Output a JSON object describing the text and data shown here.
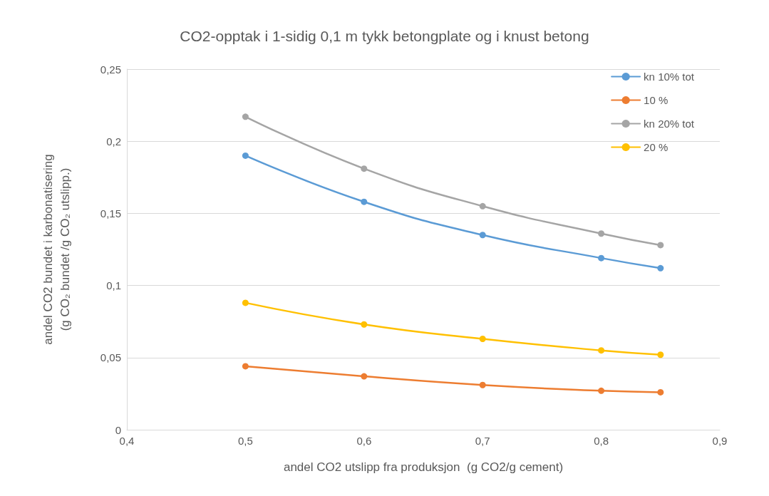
{
  "chart_data": {
    "type": "line",
    "title": "CO2-opptak i 1-sidig 0,1 m tykk betongplate og i knust betong",
    "xlabel": "andel CO2 utslipp fra produksjon  (g CO2/g cement)",
    "ylabel": "andel CO2 bundet i karbonatisering\n(g CO₂ bundet /g CO₂ utslipp.)",
    "x": [
      0.5,
      0.6,
      0.7,
      0.8,
      0.85
    ],
    "series": [
      {
        "name": "kn 10% tot",
        "color": "#5b9bd5",
        "values": [
          0.19,
          0.158,
          0.135,
          0.119,
          0.112
        ]
      },
      {
        "name": "10 %",
        "color": "#ed7d31",
        "values": [
          0.044,
          0.037,
          0.031,
          0.027,
          0.026
        ]
      },
      {
        "name": "kn 20% tot",
        "color": "#a5a5a5",
        "values": [
          0.217,
          0.181,
          0.155,
          0.136,
          0.128
        ]
      },
      {
        "name": "20 %",
        "color": "#ffc000",
        "values": [
          0.088,
          0.073,
          0.063,
          0.055,
          0.052
        ]
      }
    ],
    "xlim": [
      0.4,
      0.9
    ],
    "xticks": [
      {
        "value": 0.4,
        "label": "0,4"
      },
      {
        "value": 0.5,
        "label": "0,5"
      },
      {
        "value": 0.6,
        "label": "0,6"
      },
      {
        "value": 0.7,
        "label": "0,7"
      },
      {
        "value": 0.8,
        "label": "0,8"
      },
      {
        "value": 0.9,
        "label": "0,9"
      }
    ],
    "ylim": [
      0,
      0.25
    ],
    "yticks": [
      0,
      {
        "value": 0.05,
        "label": "0,05"
      },
      {
        "value": 0.1,
        "label": "0,1"
      },
      {
        "value": 0.15,
        "label": "0,15"
      },
      {
        "value": 0.2,
        "label": "0,2"
      },
      {
        "value": 0.25,
        "label": "0,25"
      }
    ],
    "grid": "y",
    "legend": "top right",
    "marker": "circle",
    "line_style": "solid"
  }
}
